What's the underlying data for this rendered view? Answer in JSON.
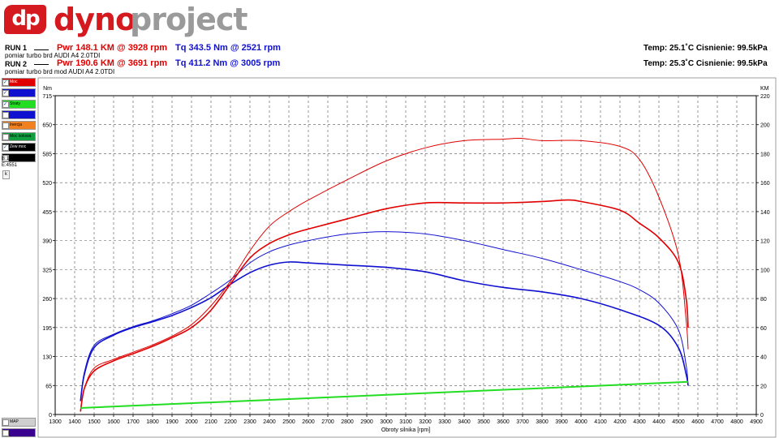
{
  "logo": {
    "mark": "dp",
    "word_a": "dyno",
    "word_b": "project"
  },
  "runs": [
    {
      "label": "RUN 1",
      "pwr": "Pwr  148.1 KM @ 3928 rpm",
      "tq": "Tq 343.5 Nm @ 2521 rpm",
      "desc": "pomiar  turbo brd AUDI A4 2.0TDI",
      "temp": "Temp: 25.1˚C   Cisnienie: 99.5kPa"
    },
    {
      "label": "RUN 2",
      "pwr": "Pwr  190.6 KM @ 3691 rpm",
      "tq": "Tq 411.2 Nm @ 3005 rpm",
      "desc": "pomiar  turbo brd  mod AUDI A4 2.0TDI",
      "temp": "Temp: 25.3˚C   Cisnienie: 99.5kPa"
    }
  ],
  "sidebar": {
    "items": [
      {
        "label": "Moc",
        "color": "#e00000",
        "checked": true
      },
      {
        "label": "",
        "color": "#1010d0",
        "checked": true
      },
      {
        "label": "Straty",
        "color": "#22dd22",
        "checked": true
      },
      {
        "label": "",
        "color": "#1010d0",
        "checked": false
      },
      {
        "label": "Inercja",
        "color": "#f08020",
        "checked": false
      },
      {
        "label": "Moc kolowa",
        "color": "#10a040",
        "checked": false
      },
      {
        "label": "Zew moc silnika",
        "color": "#000000",
        "checked": true
      },
      {
        "label": "",
        "color": "#000000",
        "checked": false
      }
    ],
    "b_value": "B:1200",
    "e_value": "E:4551",
    "k_label": "k",
    "map_label": "MAP",
    "bottom_label": "",
    "bottom_color": "#3a0090"
  },
  "colors": {
    "power": "#e00000",
    "torque": "#1010d0",
    "loss": "#22dd22"
  },
  "chart_data": {
    "type": "line",
    "xlabel": "Obroty silnika [rpm]",
    "ylabel_left": "Nm",
    "ylabel_right": "KM",
    "xlim": [
      1300,
      4900
    ],
    "ylim_left": [
      0,
      715
    ],
    "ylim_right": [
      0,
      220
    ],
    "x_ticks": [
      1300,
      1400,
      1500,
      1600,
      1700,
      1800,
      1900,
      2000,
      2100,
      2200,
      2300,
      2400,
      2500,
      2600,
      2700,
      2800,
      2900,
      3000,
      3100,
      3200,
      3300,
      3400,
      3500,
      3600,
      3700,
      3800,
      3900,
      4000,
      4100,
      4200,
      4300,
      4400,
      4500,
      4600,
      4700,
      4800,
      4900
    ],
    "y_ticks_left": [
      0,
      65,
      130,
      195,
      260,
      325,
      390,
      455,
      520,
      585,
      650,
      715
    ],
    "y_ticks_right": [
      0,
      20,
      40,
      60,
      80,
      100,
      120,
      140,
      160,
      180,
      200,
      220
    ],
    "grid": true,
    "series": [
      {
        "run": 1,
        "quantity": "torque",
        "color": "#1010d0",
        "axis": "left",
        "width": 1.6,
        "x": [
          1430,
          1450,
          1500,
          1600,
          1700,
          1800,
          1900,
          2000,
          2100,
          2200,
          2300,
          2400,
          2500,
          2600,
          2800,
          3000,
          3200,
          3400,
          3600,
          3800,
          4000,
          4200,
          4400,
          4500,
          4540,
          4550
        ],
        "y": [
          30,
          90,
          150,
          178,
          195,
          208,
          222,
          240,
          262,
          292,
          318,
          335,
          342,
          340,
          335,
          330,
          320,
          300,
          285,
          275,
          260,
          235,
          200,
          150,
          90,
          65
        ]
      },
      {
        "run": 2,
        "quantity": "torque",
        "color": "#1010d0",
        "axis": "left",
        "width": 1.0,
        "x": [
          1430,
          1450,
          1500,
          1600,
          1700,
          1800,
          1900,
          2000,
          2100,
          2200,
          2300,
          2400,
          2500,
          2600,
          2800,
          3000,
          3200,
          3400,
          3600,
          3800,
          4000,
          4200,
          4300,
          4400,
          4500,
          4540,
          4550
        ],
        "y": [
          30,
          95,
          155,
          180,
          197,
          210,
          226,
          245,
          272,
          302,
          340,
          365,
          380,
          390,
          405,
          410,
          405,
          390,
          370,
          350,
          325,
          298,
          280,
          250,
          190,
          110,
          65
        ]
      },
      {
        "run": 1,
        "quantity": "power",
        "color": "#e00000",
        "axis": "right",
        "width": 1.6,
        "x": [
          1430,
          1450,
          1500,
          1600,
          1700,
          1800,
          1900,
          2000,
          2100,
          2200,
          2300,
          2400,
          2500,
          2600,
          2800,
          3000,
          3200,
          3400,
          3600,
          3800,
          3928,
          4000,
          4200,
          4300,
          4400,
          4500,
          4540,
          4550
        ],
        "y": [
          2,
          18,
          30,
          37,
          42,
          47,
          53,
          60,
          72,
          90,
          108,
          118,
          124,
          128,
          135,
          142,
          146,
          146,
          146,
          147,
          148,
          147,
          141,
          132,
          122,
          105,
          80,
          60
        ]
      },
      {
        "run": 2,
        "quantity": "power",
        "color": "#e00000",
        "axis": "right",
        "width": 1.0,
        "x": [
          1430,
          1450,
          1500,
          1600,
          1700,
          1800,
          1900,
          2000,
          2100,
          2200,
          2300,
          2400,
          2500,
          2600,
          2800,
          3000,
          3200,
          3400,
          3600,
          3691,
          3800,
          4000,
          4200,
          4300,
          4400,
          4500,
          4540,
          4550
        ],
        "y": [
          2,
          18,
          32,
          38,
          43,
          48,
          54,
          62,
          75,
          92,
          113,
          130,
          140,
          148,
          162,
          175,
          184,
          189,
          190,
          190.6,
          189,
          189,
          185,
          176,
          150,
          110,
          65,
          45
        ]
      },
      {
        "run": 1,
        "quantity": "loss",
        "color": "#22dd22",
        "axis": "right",
        "width": 2.0,
        "x": [
          1430,
          4550
        ],
        "y": [
          4.5,
          22.5
        ]
      }
    ]
  }
}
